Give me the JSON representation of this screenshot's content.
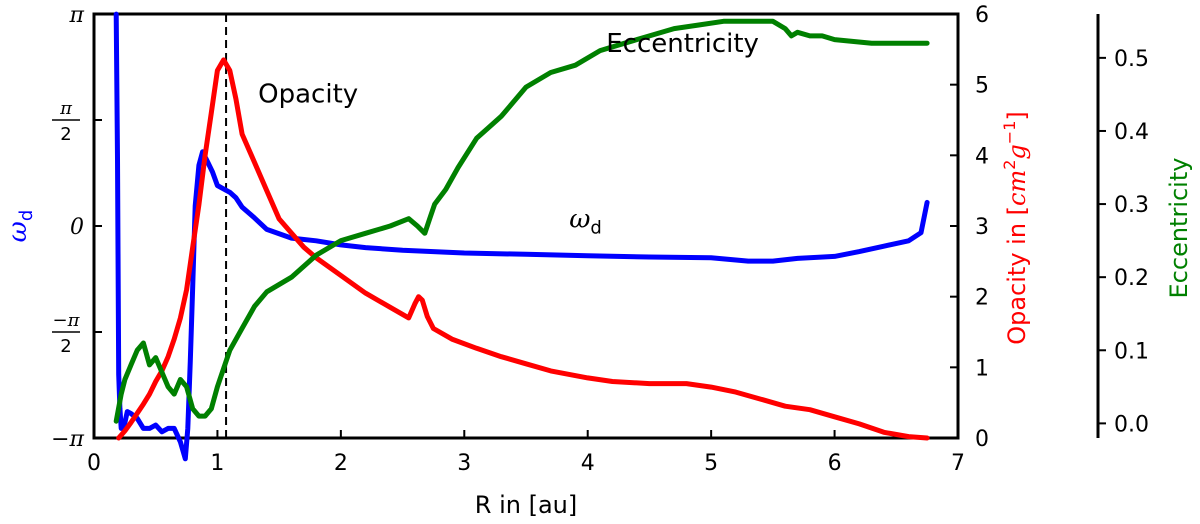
{
  "chart_data": {
    "type": "line",
    "xlabel": "R in [au]",
    "xlim": [
      0,
      7
    ],
    "xticks": [
      0,
      1,
      2,
      3,
      4,
      5,
      6,
      7
    ],
    "grid": false,
    "legend": "none",
    "axes": {
      "omega": {
        "label": "ω_d",
        "label_main": "ω",
        "label_sub": "d",
        "side": "left",
        "color": "#0000ff",
        "ylim": [
          -3.14159,
          3.14159
        ],
        "ticks": [
          {
            "value": -3.14159,
            "label": "−π"
          },
          {
            "value": -1.5708,
            "num": "−π",
            "den": "2"
          },
          {
            "value": 0,
            "label": "0"
          },
          {
            "value": 1.5708,
            "num": "π",
            "den": "2"
          },
          {
            "value": 3.14159,
            "label": "π"
          }
        ]
      },
      "opacity": {
        "label": "Opacity in [cm²g⁻¹]",
        "label_prefix": "Opacity in [",
        "label_cm": "cm",
        "label_sq": "2",
        "label_g": "g",
        "label_inv": "−1",
        "label_suffix": "]",
        "side": "right",
        "color": "#ff0000",
        "ylim": [
          0,
          6
        ],
        "ticks": [
          0,
          1,
          2,
          3,
          4,
          5,
          6
        ]
      },
      "eccentricity": {
        "label": "Eccentricity",
        "side": "right-offset",
        "color": "#008000",
        "ylim": [
          -0.02,
          0.56
        ],
        "ticks": [
          "0.0",
          "0.1",
          "0.2",
          "0.3",
          "0.4",
          "0.5"
        ],
        "tick_values": [
          0,
          0.1,
          0.2,
          0.3,
          0.4,
          0.5
        ]
      }
    },
    "series": [
      {
        "axis": "omega",
        "color": "#0000ff",
        "x": [
          0.18,
          0.19,
          0.2,
          0.21,
          0.22,
          0.24,
          0.27,
          0.3,
          0.35,
          0.4,
          0.45,
          0.5,
          0.55,
          0.6,
          0.65,
          0.7,
          0.74,
          0.76,
          0.78,
          0.8,
          0.82,
          0.85,
          0.88,
          0.92,
          0.96,
          1.0,
          1.05,
          1.1,
          1.15,
          1.2,
          1.3,
          1.4,
          1.6,
          1.8,
          2.0,
          2.2,
          2.5,
          3.0,
          3.5,
          4.0,
          4.5,
          5.0,
          5.3,
          5.5,
          5.7,
          6.0,
          6.2,
          6.4,
          6.6,
          6.7,
          6.75
        ],
        "y": [
          3.14,
          1.0,
          -2.2,
          -2.7,
          -3.0,
          -3.0,
          -2.75,
          -2.78,
          -2.85,
          -3.0,
          -3.0,
          -2.95,
          -3.05,
          -3.0,
          -3.0,
          -3.2,
          -3.45,
          -3.0,
          -2.0,
          -0.9,
          0.3,
          0.9,
          1.1,
          0.95,
          0.8,
          0.6,
          0.55,
          0.5,
          0.42,
          0.28,
          0.12,
          -0.05,
          -0.18,
          -0.22,
          -0.28,
          -0.32,
          -0.36,
          -0.4,
          -0.42,
          -0.44,
          -0.46,
          -0.47,
          -0.52,
          -0.52,
          -0.48,
          -0.45,
          -0.38,
          -0.3,
          -0.22,
          -0.1,
          0.35
        ]
      },
      {
        "axis": "opacity",
        "color": "#ff0000",
        "x": [
          0.2,
          0.25,
          0.3,
          0.35,
          0.4,
          0.45,
          0.5,
          0.55,
          0.6,
          0.65,
          0.7,
          0.75,
          0.8,
          0.85,
          0.9,
          0.95,
          1.0,
          1.05,
          1.1,
          1.15,
          1.2,
          1.3,
          1.4,
          1.5,
          1.6,
          1.7,
          1.8,
          2.0,
          2.2,
          2.4,
          2.55,
          2.6,
          2.63,
          2.66,
          2.7,
          2.75,
          2.9,
          3.1,
          3.3,
          3.5,
          3.7,
          4.0,
          4.2,
          4.5,
          4.8,
          5.0,
          5.2,
          5.4,
          5.6,
          5.8,
          6.0,
          6.2,
          6.4,
          6.6,
          6.75
        ],
        "y": [
          0.0,
          0.1,
          0.22,
          0.35,
          0.48,
          0.62,
          0.8,
          0.95,
          1.15,
          1.4,
          1.7,
          2.1,
          2.7,
          3.3,
          4.0,
          4.6,
          5.2,
          5.35,
          5.2,
          4.8,
          4.3,
          3.9,
          3.5,
          3.1,
          2.9,
          2.7,
          2.55,
          2.3,
          2.05,
          1.85,
          1.7,
          1.9,
          2.0,
          1.95,
          1.72,
          1.55,
          1.4,
          1.27,
          1.15,
          1.05,
          0.95,
          0.85,
          0.8,
          0.77,
          0.77,
          0.72,
          0.65,
          0.55,
          0.45,
          0.4,
          0.3,
          0.2,
          0.08,
          0.02,
          0.0
        ]
      },
      {
        "axis": "eccentricity",
        "color": "#008000",
        "x": [
          0.18,
          0.22,
          0.25,
          0.3,
          0.35,
          0.4,
          0.45,
          0.5,
          0.55,
          0.6,
          0.65,
          0.7,
          0.75,
          0.8,
          0.85,
          0.9,
          0.95,
          1.0,
          1.1,
          1.2,
          1.3,
          1.4,
          1.6,
          1.8,
          2.0,
          2.2,
          2.4,
          2.55,
          2.62,
          2.68,
          2.72,
          2.76,
          2.85,
          2.95,
          3.1,
          3.3,
          3.5,
          3.7,
          3.9,
          4.1,
          4.3,
          4.5,
          4.7,
          4.9,
          5.1,
          5.3,
          5.5,
          5.6,
          5.65,
          5.7,
          5.8,
          5.9,
          6.0,
          6.3,
          6.6,
          6.75
        ],
        "y": [
          0.003,
          0.04,
          0.06,
          0.08,
          0.1,
          0.11,
          0.08,
          0.09,
          0.07,
          0.05,
          0.04,
          0.06,
          0.05,
          0.02,
          0.01,
          0.01,
          0.02,
          0.05,
          0.1,
          0.13,
          0.16,
          0.18,
          0.2,
          0.23,
          0.25,
          0.26,
          0.27,
          0.28,
          0.27,
          0.26,
          0.28,
          0.3,
          0.32,
          0.35,
          0.39,
          0.42,
          0.46,
          0.48,
          0.49,
          0.51,
          0.52,
          0.53,
          0.54,
          0.545,
          0.55,
          0.55,
          0.55,
          0.54,
          0.53,
          0.535,
          0.53,
          0.53,
          0.525,
          0.52,
          0.52,
          0.52
        ]
      }
    ],
    "annotations": [
      {
        "text": "Opacity",
        "x": 1.33,
        "axis": "opacity",
        "y": 4.75
      },
      {
        "text": "Eccentricity",
        "x": 4.15,
        "axis": "eccentricity",
        "y": 0.508
      },
      {
        "text_main": "ω",
        "text_sub": "d",
        "x": 3.85,
        "axis": "omega",
        "y": -0.02
      }
    ],
    "vline": {
      "x": 1.07,
      "style": "dashed"
    }
  }
}
